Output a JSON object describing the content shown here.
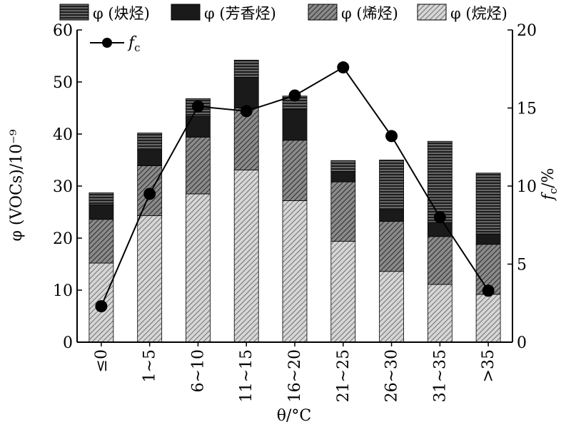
{
  "chart_data": {
    "type": "bar",
    "stacked": true,
    "categories": [
      "≤0",
      "1~5",
      "6~10",
      "11~15",
      "16~20",
      "21~25",
      "26~30",
      "31~35",
      ">35"
    ],
    "series": [
      {
        "name": "φ (烷烃)",
        "values": [
          15.2,
          24.3,
          28.5,
          33.1,
          27.2,
          19.4,
          13.6,
          11.1,
          9.2
        ],
        "pattern": "dense-diagonal",
        "color": "#bdbdbd"
      },
      {
        "name": "φ (烯烃)",
        "values": [
          8.4,
          9.6,
          10.9,
          11.9,
          11.6,
          11.4,
          9.6,
          9.2,
          9.6
        ],
        "pattern": "diagonal",
        "color": "#6e6e6e"
      },
      {
        "name": "φ (芳香烃)",
        "values": [
          2.8,
          3.0,
          4.0,
          5.9,
          6.0,
          2.0,
          2.2,
          2.7,
          2.0
        ],
        "pattern": "solid",
        "color": "#1a1a1a"
      },
      {
        "name": "φ (炔烃)",
        "values": [
          2.3,
          3.3,
          3.4,
          3.3,
          2.5,
          2.1,
          9.6,
          15.6,
          11.7
        ],
        "pattern": "horizontal",
        "color": "#3a3a3a"
      }
    ],
    "line_series": {
      "name": "f",
      "name_sub": "c",
      "axis": "right",
      "values": [
        2.3,
        9.5,
        15.1,
        14.8,
        15.8,
        17.6,
        13.2,
        8.0,
        3.3
      ]
    },
    "xlabel": "θ/°C",
    "ylabel": "φ (VOCs)/10⁻⁹",
    "y2label_main": "f",
    "y2label_sub": "c",
    "y2label_suffix": "/%",
    "ylim": [
      0,
      60
    ],
    "y2lim": [
      0,
      20
    ],
    "yticks": [
      0,
      10,
      20,
      30,
      40,
      50,
      60
    ],
    "y2ticks": [
      0,
      5,
      10,
      15,
      20
    ],
    "legend_position": "top",
    "grid": false
  }
}
